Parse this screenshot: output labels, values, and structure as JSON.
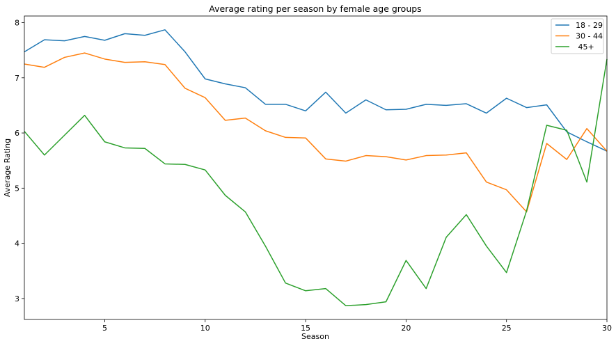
{
  "chart_data": {
    "type": "line",
    "title": "Average rating per season by female age groups",
    "xlabel": "Season",
    "ylabel": "Average Rating",
    "xlim": [
      1,
      30
    ],
    "ylim": [
      2.62,
      8.12
    ],
    "xticks": [
      5,
      10,
      15,
      20,
      25,
      30
    ],
    "yticks": [
      3,
      4,
      5,
      6,
      7,
      8
    ],
    "grid": false,
    "legend_position": "top-right",
    "x": [
      1,
      2,
      3,
      4,
      5,
      6,
      7,
      8,
      9,
      10,
      11,
      12,
      13,
      14,
      15,
      16,
      17,
      18,
      19,
      20,
      21,
      22,
      23,
      24,
      25,
      26,
      27,
      28,
      29,
      30
    ],
    "series": [
      {
        "name": "18 - 29",
        "color": "#1f77b4",
        "values": [
          7.47,
          7.69,
          7.67,
          7.75,
          7.68,
          7.8,
          7.77,
          7.87,
          7.47,
          6.98,
          6.89,
          6.82,
          6.52,
          6.52,
          6.4,
          6.74,
          6.36,
          6.6,
          6.42,
          6.43,
          6.52,
          6.5,
          6.53,
          6.36,
          6.63,
          6.46,
          6.51,
          6.02,
          5.84,
          5.67
        ]
      },
      {
        "name": "30 - 44",
        "color": "#ff7f0e",
        "values": [
          7.25,
          7.19,
          7.37,
          7.45,
          7.34,
          7.28,
          7.29,
          7.24,
          6.81,
          6.64,
          6.23,
          6.27,
          6.04,
          5.92,
          5.91,
          5.53,
          5.49,
          5.59,
          5.57,
          5.51,
          5.59,
          5.6,
          5.64,
          5.11,
          4.97,
          4.57,
          5.81,
          5.52,
          6.08,
          5.67
        ]
      },
      {
        "name": " 45+",
        "color": "#2ca02c",
        "values": [
          6.03,
          5.6,
          5.96,
          6.32,
          5.84,
          5.73,
          5.72,
          5.44,
          5.43,
          5.33,
          4.87,
          4.57,
          3.95,
          3.28,
          3.14,
          3.18,
          2.87,
          2.89,
          2.94,
          3.69,
          3.18,
          4.11,
          4.52,
          3.95,
          3.47,
          4.59,
          6.14,
          6.05,
          5.11,
          7.34
        ]
      }
    ]
  }
}
